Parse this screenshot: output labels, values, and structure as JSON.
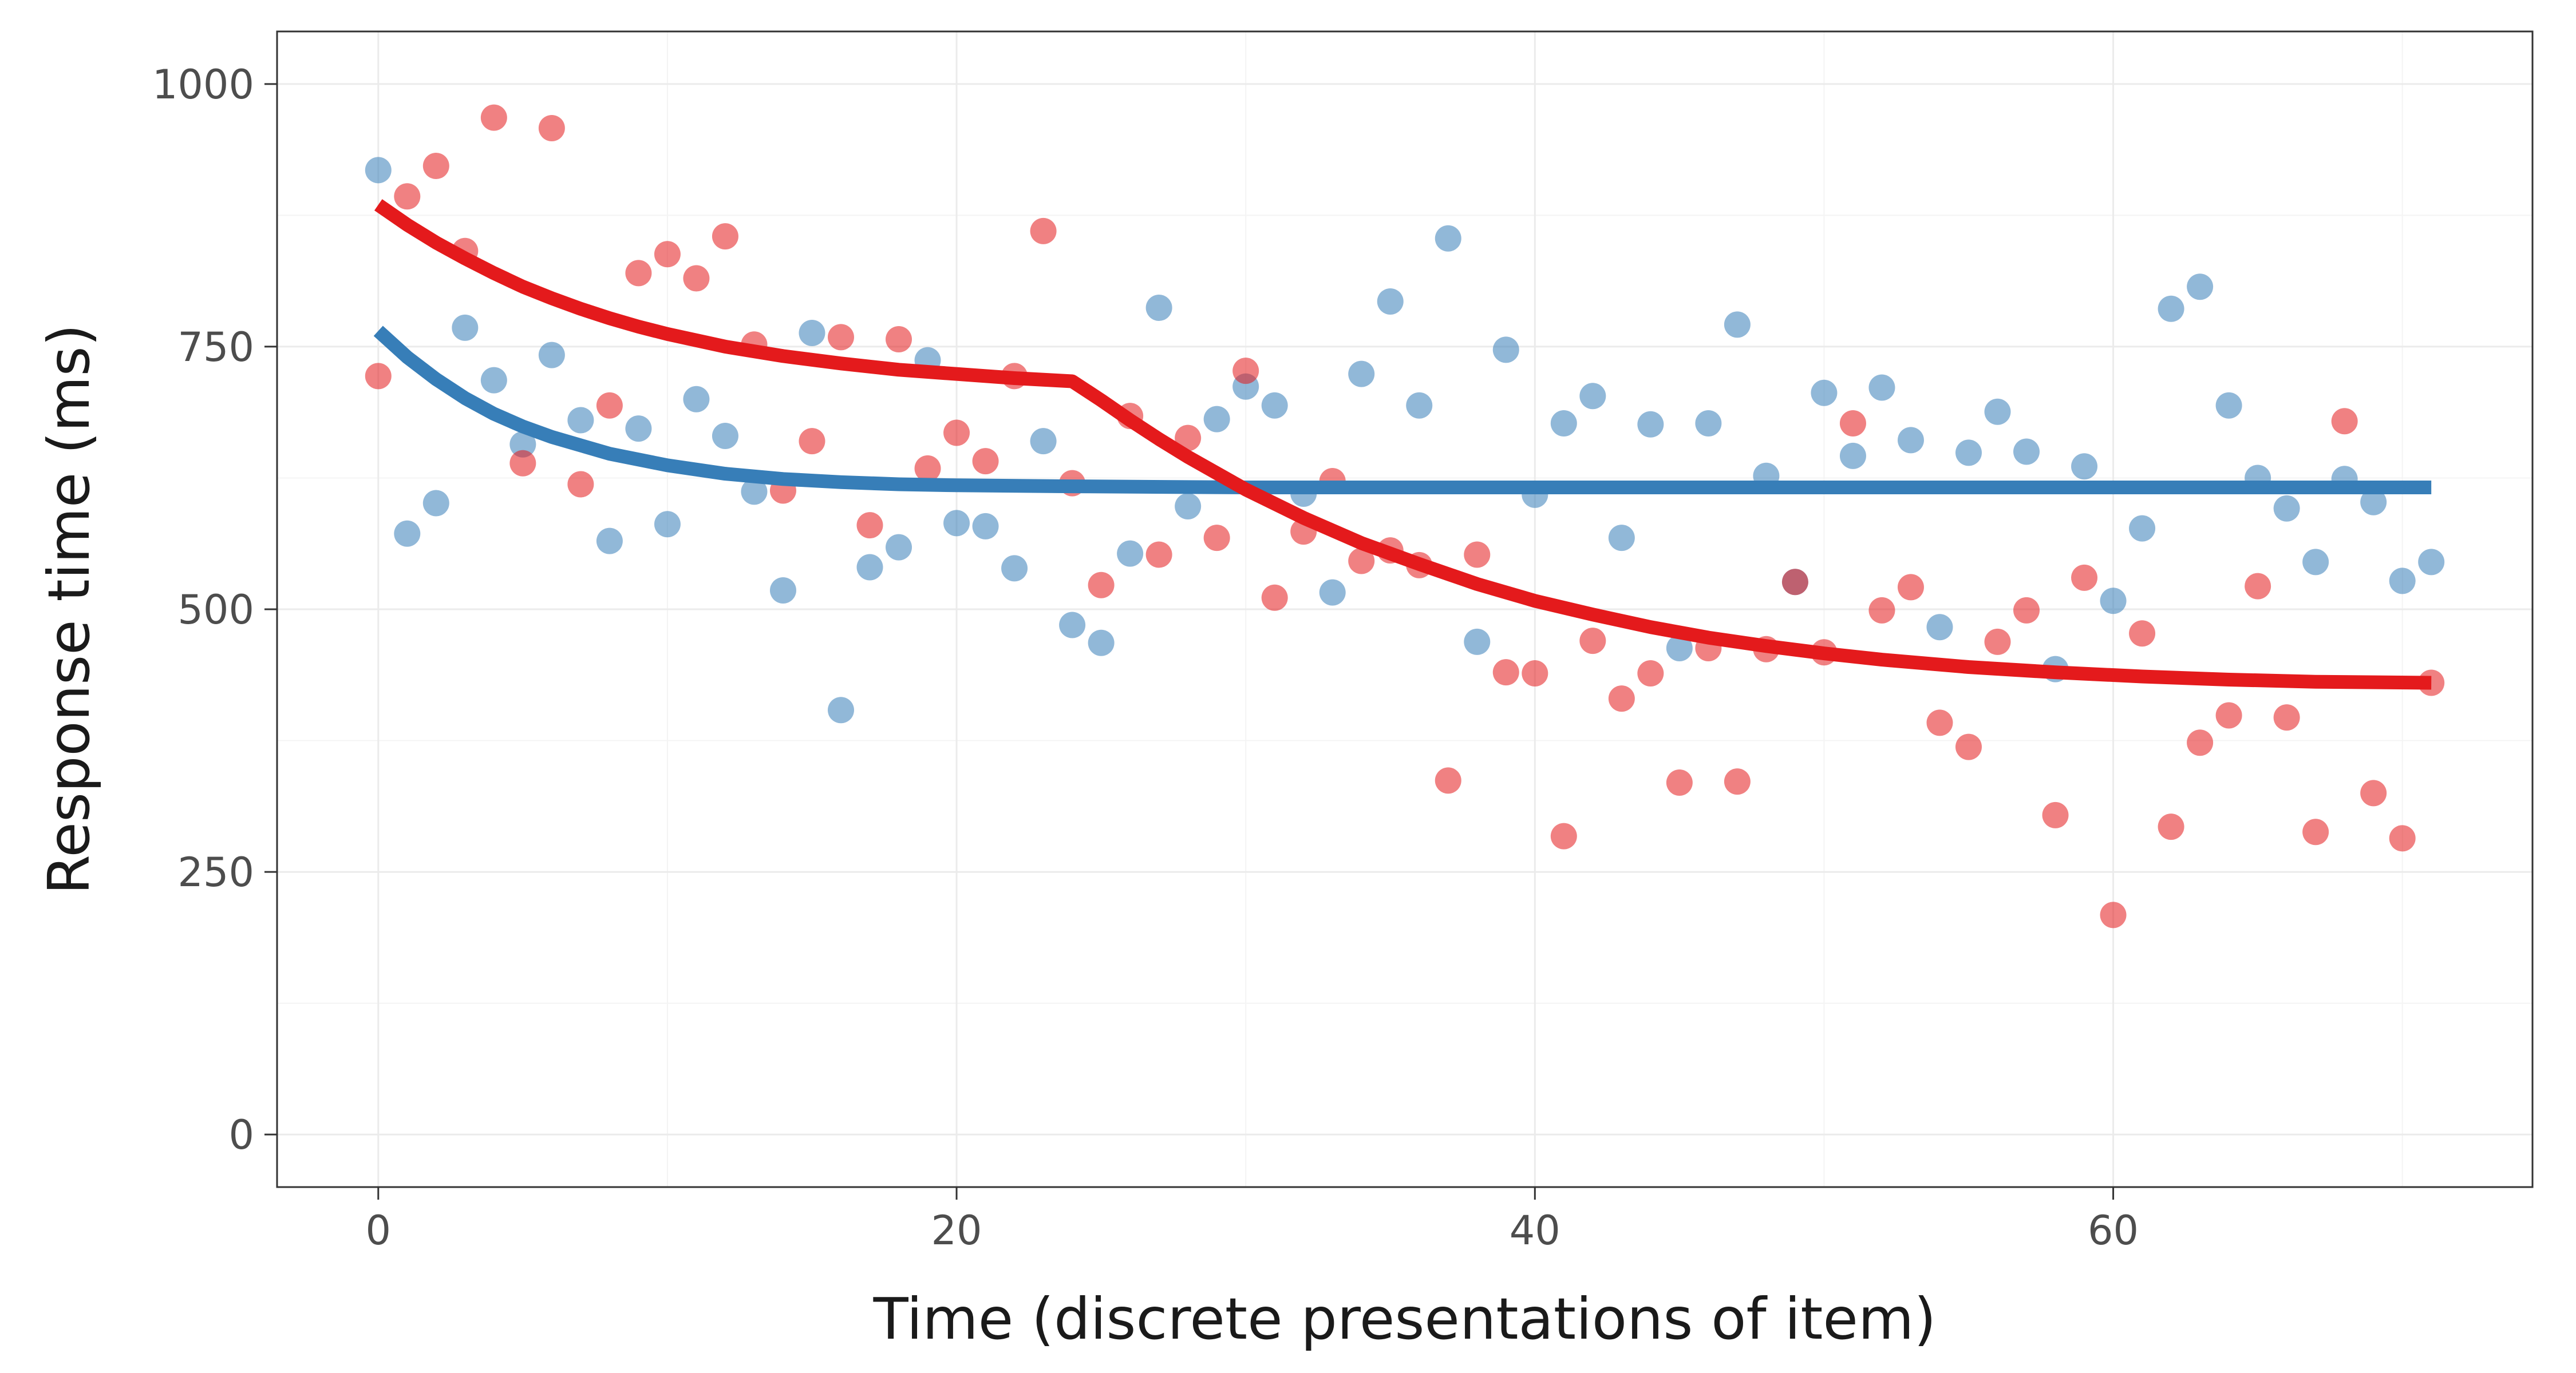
{
  "chart_data": {
    "type": "scatter",
    "title": "",
    "xlabel": "Time (discrete presentations of item)",
    "ylabel": "Response time (ms)",
    "xlim": [
      -3.5,
      74.5
    ],
    "ylim": [
      -50,
      1050
    ],
    "x_ticks": [
      0,
      20,
      40,
      60
    ],
    "y_ticks": [
      0,
      250,
      500,
      750,
      1000
    ],
    "x_tick_labels": [
      "0",
      "20",
      "40",
      "60"
    ],
    "y_tick_labels": [
      "0",
      "250",
      "500",
      "750",
      "1000"
    ],
    "grid": true,
    "legend": "none",
    "series": [
      {
        "color": "#377EB8",
        "x": [
          0,
          1,
          2,
          3,
          4,
          5,
          6,
          7,
          8,
          9,
          10,
          11,
          12,
          13,
          14,
          15,
          16,
          17,
          18,
          19,
          20,
          21,
          22,
          23,
          24,
          25,
          26,
          27,
          28,
          29,
          30,
          31,
          32,
          33,
          34,
          35,
          36,
          37,
          38,
          39,
          40,
          41,
          42,
          43,
          44,
          45,
          46,
          47,
          48,
          49,
          50,
          51,
          52,
          53,
          54,
          55,
          56,
          57,
          58,
          59,
          60,
          61,
          62,
          63,
          64,
          65,
          66,
          67,
          68,
          69,
          70,
          71
        ],
        "y": [
          918,
          572,
          601,
          768,
          718,
          657,
          742,
          680,
          565,
          672,
          581,
          700,
          665,
          612,
          518,
          763,
          404,
          540,
          559,
          737,
          582,
          579,
          539,
          660,
          485,
          468,
          553,
          787,
          598,
          681,
          712,
          694,
          610,
          516,
          724,
          793,
          694,
          853,
          469,
          747,
          609,
          677,
          703,
          568,
          676,
          463,
          677,
          771,
          627,
          526,
          706,
          646,
          711,
          661,
          483,
          649,
          688,
          650,
          443,
          636,
          508,
          577,
          786,
          807,
          694,
          625,
          596,
          545,
          624,
          602,
          527,
          545
        ],
        "fit": [
          [
            0,
            765
          ],
          [
            1,
            740
          ],
          [
            2,
            719
          ],
          [
            3,
            701
          ],
          [
            4,
            686
          ],
          [
            5,
            674
          ],
          [
            6,
            664
          ],
          [
            8,
            648
          ],
          [
            10,
            637
          ],
          [
            12,
            629
          ],
          [
            14,
            624
          ],
          [
            16,
            621
          ],
          [
            18,
            619
          ],
          [
            20,
            618
          ],
          [
            24,
            617
          ],
          [
            30,
            616
          ],
          [
            40,
            616
          ],
          [
            50,
            616
          ],
          [
            60,
            616
          ],
          [
            71,
            616
          ]
        ]
      },
      {
        "color": "#E41A1C",
        "x": [
          0,
          1,
          2,
          3,
          4,
          5,
          6,
          7,
          8,
          9,
          10,
          11,
          12,
          13,
          14,
          15,
          16,
          17,
          18,
          19,
          20,
          21,
          22,
          23,
          24,
          25,
          26,
          27,
          28,
          29,
          30,
          31,
          32,
          33,
          34,
          35,
          36,
          37,
          38,
          39,
          40,
          41,
          42,
          43,
          44,
          45,
          46,
          47,
          48,
          49,
          50,
          51,
          52,
          53,
          54,
          55,
          56,
          57,
          58,
          59,
          60,
          61,
          62,
          63,
          64,
          65,
          66,
          67,
          68,
          69,
          70,
          71
        ],
        "y": [
          722,
          893,
          922,
          841,
          968,
          639,
          958,
          619,
          694,
          820,
          838,
          815,
          855,
          752,
          613,
          660,
          759,
          580,
          757,
          634,
          668,
          641,
          722,
          860,
          620,
          523,
          684,
          552,
          663,
          568,
          727,
          511,
          574,
          622,
          546,
          556,
          542,
          337,
          552,
          440,
          439,
          284,
          470,
          415,
          439,
          335,
          463,
          336,
          462,
          526,
          459,
          677,
          499,
          521,
          392,
          369,
          469,
          499,
          304,
          530,
          209,
          477,
          293,
          373,
          399,
          522,
          397,
          288,
          679,
          325,
          282,
          430
        ],
        "fit": [
          [
            0,
            885
          ],
          [
            1,
            866
          ],
          [
            2,
            849
          ],
          [
            3,
            834
          ],
          [
            4,
            820
          ],
          [
            5,
            807
          ],
          [
            6,
            796
          ],
          [
            7,
            786
          ],
          [
            8,
            777
          ],
          [
            9,
            769
          ],
          [
            10,
            762
          ],
          [
            12,
            750
          ],
          [
            14,
            741
          ],
          [
            16,
            734
          ],
          [
            18,
            728
          ],
          [
            20,
            724
          ],
          [
            22,
            720
          ],
          [
            24,
            717
          ],
          [
            25,
            699
          ],
          [
            26,
            680
          ],
          [
            27,
            662
          ],
          [
            28,
            645
          ],
          [
            30,
            614
          ],
          [
            32,
            587
          ],
          [
            34,
            563
          ],
          [
            36,
            543
          ],
          [
            38,
            524
          ],
          [
            40,
            508
          ],
          [
            42,
            495
          ],
          [
            44,
            483
          ],
          [
            46,
            473
          ],
          [
            48,
            465
          ],
          [
            50,
            458
          ],
          [
            52,
            452
          ],
          [
            55,
            445
          ],
          [
            58,
            440
          ],
          [
            61,
            436
          ],
          [
            64,
            433
          ],
          [
            67,
            431
          ],
          [
            71,
            430
          ]
        ]
      }
    ]
  }
}
